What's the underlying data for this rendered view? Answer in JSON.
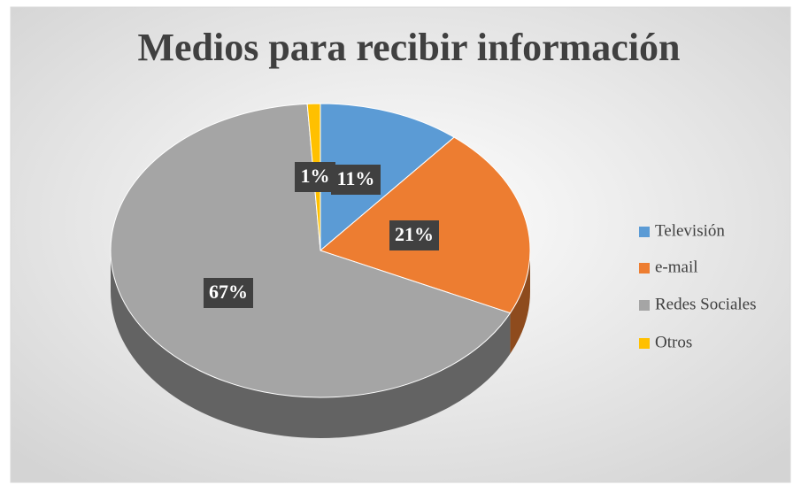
{
  "chart_data": {
    "type": "pie",
    "title": "Medios para recibir información",
    "categories": [
      "Televisión",
      "e-mail",
      "Redes Sociales",
      "Otros"
    ],
    "values": [
      11,
      21,
      67,
      1
    ],
    "value_labels": [
      "11%",
      "21%",
      "67%",
      "1%"
    ],
    "colors": [
      "#5b9bd5",
      "#ed7d31",
      "#a5a5a5",
      "#ffc000"
    ],
    "legend": "right"
  }
}
